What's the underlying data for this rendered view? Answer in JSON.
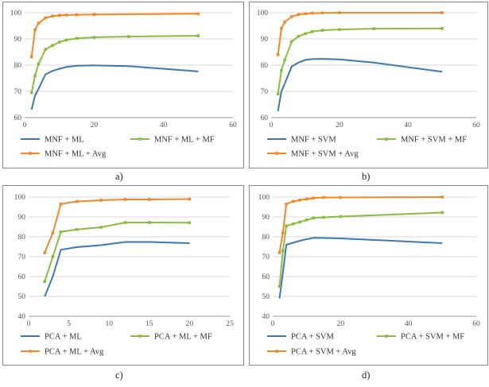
{
  "colors": {
    "blue": "#3e79ad",
    "green": "#8cbc3e",
    "orange": "#ee8a2a",
    "grid": "#d8d8d8",
    "axis": "#9a9a9a"
  },
  "chart_data": [
    {
      "type": "line",
      "caption": "a)",
      "xlim": [
        0,
        60
      ],
      "xticks": [
        0,
        20,
        40,
        60
      ],
      "ylim": [
        60,
        100
      ],
      "yticks": [
        60,
        70,
        80,
        90,
        100
      ],
      "series": [
        {
          "name": "MNF + ML",
          "color": "blue",
          "marker": false,
          "x": [
            2,
            3,
            4,
            6,
            8,
            10,
            12,
            15,
            20,
            30,
            50
          ],
          "y": [
            63,
            68.5,
            71,
            76.5,
            77.8,
            78.6,
            79.3,
            79.8,
            79.9,
            79.6,
            77.6
          ]
        },
        {
          "name": "MNF + ML + MF",
          "color": "green",
          "marker": true,
          "x": [
            2,
            3,
            4,
            6,
            8,
            10,
            12,
            15,
            20,
            30,
            50
          ],
          "y": [
            69.5,
            76,
            80.5,
            86,
            87.5,
            88.8,
            89.6,
            90.2,
            90.6,
            90.9,
            91.2
          ]
        },
        {
          "name": "MNF + ML + Avg",
          "color": "orange",
          "marker": true,
          "x": [
            2,
            3,
            4,
            6,
            8,
            10,
            12,
            15,
            20,
            50
          ],
          "y": [
            83.2,
            93.5,
            96,
            98,
            98.7,
            99,
            99.1,
            99.2,
            99.3,
            99.6
          ]
        }
      ]
    },
    {
      "type": "line",
      "caption": "b)",
      "xlim": [
        0,
        60
      ],
      "xticks": [
        0,
        20,
        40,
        60
      ],
      "ylim": [
        60,
        100
      ],
      "yticks": [
        60,
        70,
        80,
        90,
        100
      ],
      "series": [
        {
          "name": "MNF + SVM",
          "color": "blue",
          "marker": false,
          "x": [
            2,
            3,
            4,
            6,
            8,
            10,
            12,
            15,
            20,
            30,
            50
          ],
          "y": [
            62.5,
            70,
            73,
            79.5,
            81,
            82,
            82.3,
            82.4,
            82.2,
            81,
            77.5
          ]
        },
        {
          "name": "MNF + SVM + MF",
          "color": "green",
          "marker": true,
          "x": [
            2,
            3,
            4,
            6,
            8,
            10,
            12,
            15,
            20,
            30,
            50
          ],
          "y": [
            69,
            78,
            82,
            89,
            91,
            92,
            92.8,
            93.3,
            93.6,
            93.9,
            94
          ]
        },
        {
          "name": "MNF + SVM + Avg",
          "color": "orange",
          "marker": true,
          "x": [
            2,
            3,
            4,
            6,
            8,
            10,
            12,
            15,
            20,
            50
          ],
          "y": [
            84,
            94,
            96.5,
            98.5,
            99.3,
            99.6,
            99.8,
            99.9,
            100,
            100
          ]
        }
      ]
    },
    {
      "type": "line",
      "caption": "c)",
      "xlim": [
        0,
        25
      ],
      "xticks": [
        0,
        5,
        10,
        15,
        20,
        25
      ],
      "ylim": [
        40,
        100
      ],
      "yticks": [
        40,
        50,
        60,
        70,
        80,
        90,
        100
      ],
      "series": [
        {
          "name": "PCA + ML",
          "color": "blue",
          "marker": false,
          "x": [
            2,
            3,
            4,
            6,
            9,
            12,
            15,
            20
          ],
          "y": [
            50,
            60,
            73.5,
            74.8,
            75.8,
            77.4,
            77.4,
            76.8
          ]
        },
        {
          "name": "PCA + ML + MF",
          "color": "green",
          "marker": true,
          "x": [
            2,
            3,
            4,
            6,
            9,
            12,
            15,
            20
          ],
          "y": [
            57.5,
            70,
            82.5,
            83.7,
            84.8,
            87.2,
            87.2,
            87.1
          ]
        },
        {
          "name": "PCA + ML + Avg",
          "color": "orange",
          "marker": true,
          "x": [
            2,
            3,
            4,
            6,
            9,
            12,
            15,
            20
          ],
          "y": [
            72,
            82,
            96.5,
            97.8,
            98.4,
            98.8,
            98.8,
            99
          ]
        }
      ]
    },
    {
      "type": "line",
      "caption": "d)",
      "xlim": [
        0,
        60
      ],
      "xticks": [
        0,
        20,
        40,
        60
      ],
      "ylim": [
        40,
        100
      ],
      "yticks": [
        40,
        50,
        60,
        70,
        80,
        90,
        100
      ],
      "series": [
        {
          "name": "PCA + SVM",
          "color": "blue",
          "marker": false,
          "x": [
            2,
            3,
            4,
            6,
            8,
            10,
            12,
            15,
            20,
            50
          ],
          "y": [
            49,
            62,
            76,
            77,
            78,
            78.8,
            79.5,
            79.4,
            79.2,
            76.8
          ]
        },
        {
          "name": "PCA + SVM + MF",
          "color": "green",
          "marker": true,
          "x": [
            2,
            3,
            4,
            6,
            8,
            10,
            12,
            15,
            20,
            50
          ],
          "y": [
            55,
            73,
            85.5,
            86.5,
            87.5,
            88.5,
            89.5,
            89.8,
            90.2,
            92.2
          ]
        },
        {
          "name": "PCA + SVM + Avg",
          "color": "orange",
          "marker": true,
          "x": [
            2,
            3,
            4,
            6,
            8,
            10,
            12,
            15,
            20,
            50
          ],
          "y": [
            72,
            82,
            96.5,
            97.8,
            98.5,
            99,
            99.5,
            99.8,
            99.8,
            100
          ]
        }
      ]
    }
  ]
}
